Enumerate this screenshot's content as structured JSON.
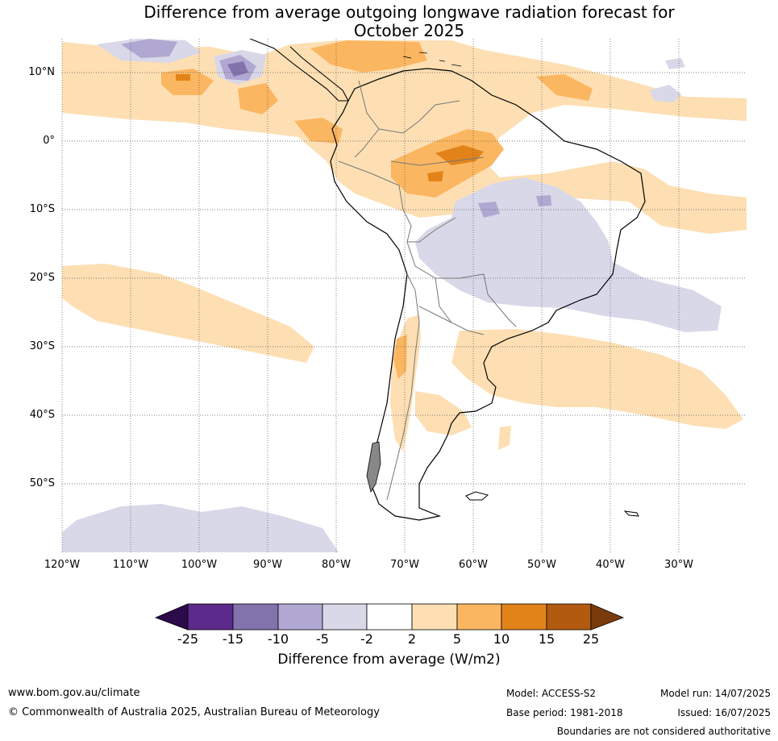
{
  "title_line1": "Difference from average outgoing longwave radiation forecast for",
  "title_line2": "October 2025",
  "lat_labels": [
    "10°N",
    "0°",
    "10°S",
    "20°S",
    "30°S",
    "40°S",
    "50°S"
  ],
  "lon_labels": [
    "120°W",
    "110°W",
    "100°W",
    "90°W",
    "80°W",
    "70°W",
    "60°W",
    "50°W",
    "40°W",
    "30°W"
  ],
  "colorbar": {
    "ticks": [
      "-25",
      "-15",
      "-10",
      "-5",
      "-2",
      "2",
      "5",
      "10",
      "15",
      "25"
    ],
    "colors": [
      "#2d0a4a",
      "#5b2a8a",
      "#8373ad",
      "#b0a8d2",
      "#d8d8e9",
      "#ffffff",
      "#fddfb3",
      "#fbb661",
      "#e2831a",
      "#b25a0f",
      "#7a3b0c"
    ],
    "label": "Difference from average (W/m2)"
  },
  "footer": {
    "website": "www.bom.gov.au/climate",
    "copyright": "© Commonwealth of Australia 2025, Australian Bureau of Meteorology",
    "model": "Model: ACCESS-S2",
    "base_period": "Base period: 1981-2018",
    "model_run": "Model run: 14/07/2025",
    "issued": "Issued: 16/07/2025",
    "disclaimer": "Boundaries are not considered authoritative"
  }
}
